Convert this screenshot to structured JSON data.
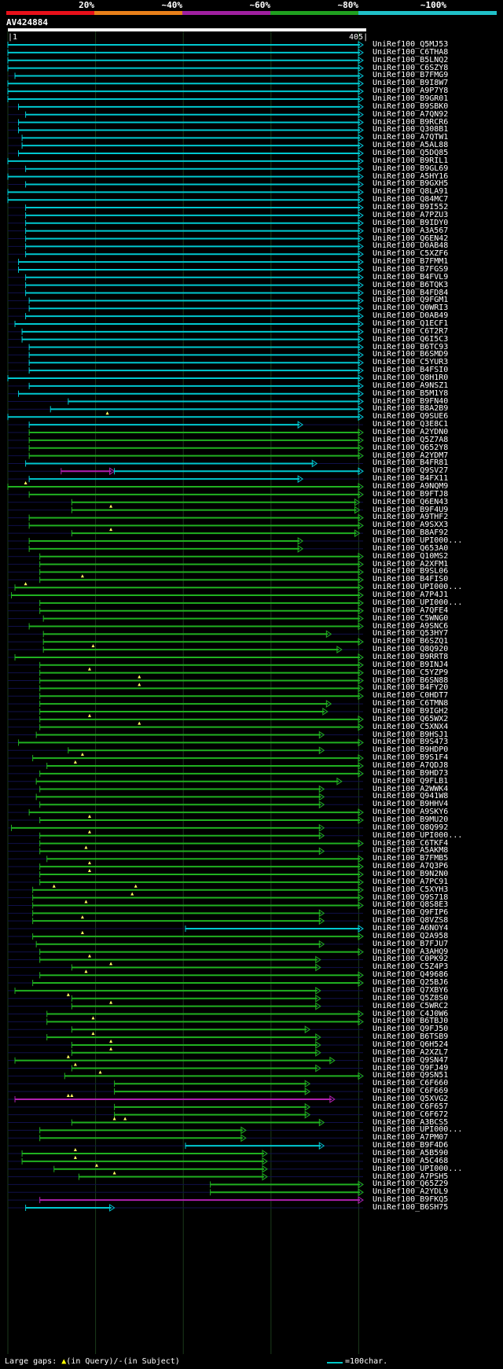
{
  "legend": {
    "labels": [
      "20%",
      "~40%",
      "~60%",
      "~80%",
      "~100%"
    ],
    "colors": [
      "#e8101a",
      "#e8801a",
      "#a020a0",
      "#20a020",
      "#20c0c8"
    ]
  },
  "query": {
    "name": "AV424884",
    "start": "1",
    "end": "405"
  },
  "hits": [
    {
      "name": "UniRef100_Q5MJ53",
      "s": 0.0,
      "e": 1.0,
      "c": "cyan"
    },
    {
      "name": "UniRef100_C6THA8",
      "s": 0.0,
      "e": 1.0,
      "c": "cyan"
    },
    {
      "name": "UniRef100_B5LNQ2",
      "s": 0.0,
      "e": 1.0,
      "c": "cyan"
    },
    {
      "name": "UniRef100_C6SZY8",
      "s": 0.0,
      "e": 1.0,
      "c": "cyan"
    },
    {
      "name": "UniRef100_B7FMG9",
      "s": 0.02,
      "e": 1.0,
      "c": "cyan"
    },
    {
      "name": "UniRef100_B9I8W7",
      "s": 0.0,
      "e": 1.0,
      "c": "cyan"
    },
    {
      "name": "UniRef100_A9P7Y8",
      "s": 0.0,
      "e": 1.0,
      "c": "cyan"
    },
    {
      "name": "UniRef100_B9GR01",
      "s": 0.0,
      "e": 1.0,
      "c": "cyan"
    },
    {
      "name": "UniRef100_B9SBK0",
      "s": 0.03,
      "e": 1.0,
      "c": "cyan"
    },
    {
      "name": "UniRef100_A7QN92",
      "s": 0.05,
      "e": 1.0,
      "c": "cyan"
    },
    {
      "name": "UniRef100_B9RCR6",
      "s": 0.03,
      "e": 1.0,
      "c": "cyan"
    },
    {
      "name": "UniRef100_Q308B1",
      "s": 0.03,
      "e": 1.0,
      "c": "cyan"
    },
    {
      "name": "UniRef100_A7QTW1",
      "s": 0.04,
      "e": 1.0,
      "c": "cyan"
    },
    {
      "name": "UniRef100_A5AL88",
      "s": 0.04,
      "e": 1.0,
      "c": "cyan"
    },
    {
      "name": "UniRef100_Q5DQ85",
      "s": 0.03,
      "e": 1.0,
      "c": "cyan"
    },
    {
      "name": "UniRef100_B9RIL1",
      "s": 0.0,
      "e": 1.0,
      "c": "cyan"
    },
    {
      "name": "UniRef100_B9GL69",
      "s": 0.05,
      "e": 1.0,
      "c": "cyan"
    },
    {
      "name": "UniRef100_A5HY16",
      "s": 0.0,
      "e": 1.0,
      "c": "cyan"
    },
    {
      "name": "UniRef100_B9GXH5",
      "s": 0.05,
      "e": 1.0,
      "c": "cyan"
    },
    {
      "name": "UniRef100_Q8LA91",
      "s": 0.0,
      "e": 1.0,
      "c": "cyan"
    },
    {
      "name": "UniRef100_Q84MC7",
      "s": 0.0,
      "e": 1.0,
      "c": "cyan"
    },
    {
      "name": "UniRef100_B9I552",
      "s": 0.05,
      "e": 1.0,
      "c": "cyan"
    },
    {
      "name": "UniRef100_A7PZU3",
      "s": 0.05,
      "e": 1.0,
      "c": "cyan"
    },
    {
      "name": "UniRef100_B9IDY0",
      "s": 0.05,
      "e": 1.0,
      "c": "cyan"
    },
    {
      "name": "UniRef100_A3A567",
      "s": 0.05,
      "e": 1.0,
      "c": "cyan"
    },
    {
      "name": "UniRef100_Q6EN42",
      "s": 0.05,
      "e": 1.0,
      "c": "cyan"
    },
    {
      "name": "UniRef100_D0AB48",
      "s": 0.05,
      "e": 1.0,
      "c": "cyan"
    },
    {
      "name": "UniRef100_C5XZF6",
      "s": 0.05,
      "e": 1.0,
      "c": "cyan"
    },
    {
      "name": "UniRef100_B7FMM1",
      "s": 0.03,
      "e": 1.0,
      "c": "cyan"
    },
    {
      "name": "UniRef100_B7FGS9",
      "s": 0.03,
      "e": 1.0,
      "c": "cyan"
    },
    {
      "name": "UniRef100_B4FVL9",
      "s": 0.05,
      "e": 1.0,
      "c": "cyan"
    },
    {
      "name": "UniRef100_B6TQK3",
      "s": 0.05,
      "e": 1.0,
      "c": "cyan"
    },
    {
      "name": "UniRef100_B4FD84",
      "s": 0.05,
      "e": 1.0,
      "c": "cyan"
    },
    {
      "name": "UniRef100_Q9FGM1",
      "s": 0.06,
      "e": 1.0,
      "c": "cyan"
    },
    {
      "name": "UniRef100_Q0WRI3",
      "s": 0.06,
      "e": 1.0,
      "c": "cyan"
    },
    {
      "name": "UniRef100_D0AB49",
      "s": 0.05,
      "e": 1.0,
      "c": "cyan"
    },
    {
      "name": "UniRef100_Q1ECF1",
      "s": 0.02,
      "e": 1.0,
      "c": "cyan"
    },
    {
      "name": "UniRef100_C6T2R7",
      "s": 0.04,
      "e": 1.0,
      "c": "cyan"
    },
    {
      "name": "UniRef100_Q6I5C3",
      "s": 0.04,
      "e": 1.0,
      "c": "cyan"
    },
    {
      "name": "UniRef100_B6TC93",
      "s": 0.06,
      "e": 1.0,
      "c": "cyan"
    },
    {
      "name": "UniRef100_B6SMD9",
      "s": 0.06,
      "e": 1.0,
      "c": "cyan"
    },
    {
      "name": "UniRef100_C5YUR3",
      "s": 0.06,
      "e": 1.0,
      "c": "cyan"
    },
    {
      "name": "UniRef100_B4FSI0",
      "s": 0.06,
      "e": 1.0,
      "c": "cyan"
    },
    {
      "name": "UniRef100_Q8H1R0",
      "s": 0.0,
      "e": 1.0,
      "c": "cyan"
    },
    {
      "name": "UniRef100_A9NSZ1",
      "s": 0.06,
      "e": 1.0,
      "c": "cyan"
    },
    {
      "name": "UniRef100_B5M1Y8",
      "s": 0.03,
      "e": 1.0,
      "c": "cyan"
    },
    {
      "name": "UniRef100_B9FN40",
      "s": 0.17,
      "e": 1.0,
      "c": "cyan"
    },
    {
      "name": "UniRef100_B8A2B9",
      "s": 0.12,
      "e": 1.0,
      "c": "cyan"
    },
    {
      "name": "UniRef100_Q9SUE6",
      "s": 0.0,
      "e": 1.0,
      "c": "cyan",
      "tri": [
        0.28
      ]
    },
    {
      "name": "UniRef100_Q3E8C1",
      "s": 0.06,
      "e": 0.83,
      "c": "cyan"
    },
    {
      "name": "UniRef100_A2YDN0",
      "s": 0.06,
      "e": 1.0,
      "c": "green"
    },
    {
      "name": "UniRef100_Q5Z7A8",
      "s": 0.06,
      "e": 1.0,
      "c": "green"
    },
    {
      "name": "UniRef100_Q652Y8",
      "s": 0.06,
      "e": 1.0,
      "c": "green"
    },
    {
      "name": "UniRef100_A2YDM7",
      "s": 0.06,
      "e": 1.0,
      "c": "green"
    },
    {
      "name": "UniRef100_B4FR81",
      "s": 0.05,
      "e": 0.87,
      "c": "cyan"
    },
    {
      "name": "UniRef100_Q9SV27",
      "s": 0.15,
      "e": 0.3,
      "c": "magenta",
      "s2": 0.3,
      "e2": 1.0,
      "c2": "cyan"
    },
    {
      "name": "UniRef100_B4FX11",
      "s": 0.06,
      "e": 0.83,
      "c": "cyan"
    },
    {
      "name": "UniRef100_A9NQM9",
      "s": 0.0,
      "e": 1.0,
      "c": "green",
      "tri": [
        0.05
      ]
    },
    {
      "name": "UniRef100_B9FTJ8",
      "s": 0.06,
      "e": 1.0,
      "c": "green"
    },
    {
      "name": "UniRef100_Q6EN43",
      "s": 0.18,
      "e": 0.99,
      "c": "green"
    },
    {
      "name": "UniRef100_B9F4U9",
      "s": 0.18,
      "e": 0.99,
      "c": "green",
      "tri": [
        0.29
      ]
    },
    {
      "name": "UniRef100_A9THF2",
      "s": 0.06,
      "e": 1.0,
      "c": "green"
    },
    {
      "name": "UniRef100_A9SXX3",
      "s": 0.06,
      "e": 1.0,
      "c": "green"
    },
    {
      "name": "UniRef100_B8AF92",
      "s": 0.18,
      "e": 0.99,
      "c": "green",
      "tri": [
        0.29
      ]
    },
    {
      "name": "UniRef100_UPI000...",
      "s": 0.06,
      "e": 0.83,
      "c": "green"
    },
    {
      "name": "UniRef100_Q653A0",
      "s": 0.06,
      "e": 0.83,
      "c": "green"
    },
    {
      "name": "UniRef100_Q10MS2",
      "s": 0.09,
      "e": 1.0,
      "c": "green"
    },
    {
      "name": "UniRef100_A2XFM1",
      "s": 0.09,
      "e": 1.0,
      "c": "green"
    },
    {
      "name": "UniRef100_B9SL06",
      "s": 0.09,
      "e": 1.0,
      "c": "green"
    },
    {
      "name": "UniRef100_B4FIS0",
      "s": 0.09,
      "e": 1.0,
      "c": "green",
      "tri": [
        0.21
      ]
    },
    {
      "name": "UniRef100_UPI000...",
      "s": 0.02,
      "e": 1.0,
      "c": "green",
      "tri": [
        0.05
      ]
    },
    {
      "name": "UniRef100_A7P4J1",
      "s": 0.01,
      "e": 1.0,
      "c": "green"
    },
    {
      "name": "UniRef100_UPI000...",
      "s": 0.09,
      "e": 1.0,
      "c": "green"
    },
    {
      "name": "UniRef100_A7QFE4",
      "s": 0.09,
      "e": 1.0,
      "c": "green"
    },
    {
      "name": "UniRef100_C5WNG0",
      "s": 0.1,
      "e": 1.0,
      "c": "green"
    },
    {
      "name": "UniRef100_A9SNC6",
      "s": 0.06,
      "e": 1.0,
      "c": "green"
    },
    {
      "name": "UniRef100_Q53HY7",
      "s": 0.1,
      "e": 0.91,
      "c": "green"
    },
    {
      "name": "UniRef100_B6SZQ1",
      "s": 0.1,
      "e": 1.0,
      "c": "green"
    },
    {
      "name": "UniRef100_Q8Q920",
      "s": 0.1,
      "e": 0.94,
      "c": "green",
      "tri": [
        0.24
      ]
    },
    {
      "name": "UniRef100_B9RRT8",
      "s": 0.02,
      "e": 1.0,
      "c": "green"
    },
    {
      "name": "UniRef100_B9INJ4",
      "s": 0.09,
      "e": 1.0,
      "c": "green"
    },
    {
      "name": "UniRef100_C5YZP9",
      "s": 0.09,
      "e": 1.0,
      "c": "green",
      "tri": [
        0.23
      ]
    },
    {
      "name": "UniRef100_B6SN88",
      "s": 0.09,
      "e": 1.0,
      "c": "green",
      "tri": [
        0.37
      ]
    },
    {
      "name": "UniRef100_B4FY20",
      "s": 0.09,
      "e": 1.0,
      "c": "green",
      "tri": [
        0.37
      ]
    },
    {
      "name": "UniRef100_C0HDT7",
      "s": 0.09,
      "e": 1.0,
      "c": "green"
    },
    {
      "name": "UniRef100_C6TMN8",
      "s": 0.09,
      "e": 0.91,
      "c": "green"
    },
    {
      "name": "UniRef100_B9IGH2",
      "s": 0.09,
      "e": 0.9,
      "c": "green"
    },
    {
      "name": "UniRef100_Q65WX2",
      "s": 0.09,
      "e": 1.0,
      "c": "green",
      "tri": [
        0.23
      ]
    },
    {
      "name": "UniRef100_C5XNX4",
      "s": 0.09,
      "e": 1.0,
      "c": "green",
      "tri": [
        0.37
      ]
    },
    {
      "name": "UniRef100_B9HSJ1",
      "s": 0.08,
      "e": 0.89,
      "c": "green"
    },
    {
      "name": "UniRef100_B9S473",
      "s": 0.03,
      "e": 1.0,
      "c": "green"
    },
    {
      "name": "UniRef100_B9HDP0",
      "s": 0.17,
      "e": 0.89,
      "c": "green"
    },
    {
      "name": "UniRef100_B9S1F4",
      "s": 0.07,
      "e": 1.0,
      "c": "green",
      "tri": [
        0.21
      ]
    },
    {
      "name": "UniRef100_A7QDJ8",
      "s": 0.11,
      "e": 1.0,
      "c": "green",
      "tri": [
        0.19
      ]
    },
    {
      "name": "UniRef100_B9HD73",
      "s": 0.09,
      "e": 1.0,
      "c": "green"
    },
    {
      "name": "UniRef100_Q9FLB1",
      "s": 0.08,
      "e": 0.94,
      "c": "green"
    },
    {
      "name": "UniRef100_A2WWK4",
      "s": 0.09,
      "e": 0.89,
      "c": "green"
    },
    {
      "name": "UniRef100_Q941W8",
      "s": 0.08,
      "e": 0.89,
      "c": "green"
    },
    {
      "name": "UniRef100_B9HHV4",
      "s": 0.09,
      "e": 0.89,
      "c": "green"
    },
    {
      "name": "UniRef100_A9SKY6",
      "s": 0.06,
      "e": 1.0,
      "c": "green"
    },
    {
      "name": "UniRef100_B9MU20",
      "s": 0.09,
      "e": 1.0,
      "c": "green",
      "tri": [
        0.23
      ]
    },
    {
      "name": "UniRef100_Q8Q992",
      "s": 0.01,
      "e": 0.89,
      "c": "green"
    },
    {
      "name": "UniRef100_UPI000...",
      "s": 0.09,
      "e": 0.89,
      "c": "green",
      "tri": [
        0.23
      ]
    },
    {
      "name": "UniRef100_C6TKF4",
      "s": 0.09,
      "e": 1.0,
      "c": "green"
    },
    {
      "name": "UniRef100_A5AKM8",
      "s": 0.09,
      "e": 0.89,
      "c": "green",
      "tri": [
        0.22
      ]
    },
    {
      "name": "UniRef100_B7FMB5",
      "s": 0.11,
      "e": 1.0,
      "c": "green"
    },
    {
      "name": "UniRef100_A7Q3P6",
      "s": 0.09,
      "e": 1.0,
      "c": "green",
      "tri": [
        0.23
      ]
    },
    {
      "name": "UniRef100_B9N2N0",
      "s": 0.09,
      "e": 1.0,
      "c": "green",
      "tri": [
        0.23
      ]
    },
    {
      "name": "UniRef100_A7PC91",
      "s": 0.09,
      "e": 1.0,
      "c": "green"
    },
    {
      "name": "UniRef100_C5XYH3",
      "s": 0.07,
      "e": 1.0,
      "c": "green",
      "tri": [
        0.13,
        0.36
      ]
    },
    {
      "name": "UniRef100_Q9S718",
      "s": 0.07,
      "e": 1.0,
      "c": "green",
      "tri": [
        0.35
      ]
    },
    {
      "name": "UniRef100_Q8S8E3",
      "s": 0.07,
      "e": 1.0,
      "c": "green",
      "tri": [
        0.22
      ]
    },
    {
      "name": "UniRef100_Q9FIP6",
      "s": 0.07,
      "e": 0.89,
      "c": "green"
    },
    {
      "name": "UniRef100_Q8VZS8",
      "s": 0.07,
      "e": 0.89,
      "c": "green",
      "tri": [
        0.21
      ]
    },
    {
      "name": "UniRef100_A6NOY4",
      "s": 0.5,
      "e": 1.0,
      "c": "cyan"
    },
    {
      "name": "UniRef100_Q2A958",
      "s": 0.07,
      "e": 1.0,
      "c": "green",
      "tri": [
        0.21
      ]
    },
    {
      "name": "UniRef100_B7FJU7",
      "s": 0.08,
      "e": 0.89,
      "c": "green"
    },
    {
      "name": "UniRef100_A3AHQ9",
      "s": 0.09,
      "e": 1.0,
      "c": "green"
    },
    {
      "name": "UniRef100_C0PK92",
      "s": 0.09,
      "e": 0.88,
      "c": "green",
      "tri": [
        0.23
      ]
    },
    {
      "name": "UniRef100_C5Z4P3",
      "s": 0.18,
      "e": 0.88,
      "c": "green",
      "tri": [
        0.29
      ]
    },
    {
      "name": "UniRef100_Q49686",
      "s": 0.09,
      "e": 1.0,
      "c": "green",
      "tri": [
        0.22
      ]
    },
    {
      "name": "UniRef100_Q25BJ6",
      "s": 0.07,
      "e": 1.0,
      "c": "green"
    },
    {
      "name": "UniRef100_Q7XBY6",
      "s": 0.02,
      "e": 0.88,
      "c": "green"
    },
    {
      "name": "UniRef100_Q5Z8S0",
      "s": 0.18,
      "e": 0.88,
      "c": "green",
      "tri": [
        0.17
      ]
    },
    {
      "name": "UniRef100_C5WRC2",
      "s": 0.18,
      "e": 0.88,
      "c": "green",
      "tri": [
        0.29
      ]
    },
    {
      "name": "UniRef100_C4J0W6",
      "s": 0.11,
      "e": 1.0,
      "c": "green"
    },
    {
      "name": "UniRef100_B6TBJ0",
      "s": 0.11,
      "e": 1.0,
      "c": "green",
      "tri": [
        0.24
      ]
    },
    {
      "name": "UniRef100_Q9FJ50",
      "s": 0.18,
      "e": 0.85,
      "c": "green"
    },
    {
      "name": "UniRef100_B6TSB9",
      "s": 0.11,
      "e": 0.88,
      "c": "green",
      "tri": [
        0.24
      ]
    },
    {
      "name": "UniRef100_Q6H524",
      "s": 0.18,
      "e": 0.88,
      "c": "green",
      "tri": [
        0.29
      ]
    },
    {
      "name": "UniRef100_A2XZL7",
      "s": 0.18,
      "e": 0.88,
      "c": "green",
      "tri": [
        0.29
      ]
    },
    {
      "name": "UniRef100_Q9SN47",
      "s": 0.02,
      "e": 0.92,
      "c": "green",
      "tri": [
        0.17
      ]
    },
    {
      "name": "UniRef100_Q9FJ49",
      "s": 0.18,
      "e": 0.88,
      "c": "green",
      "tri": [
        0.19
      ]
    },
    {
      "name": "UniRef100_Q9SN51",
      "s": 0.16,
      "e": 1.0,
      "c": "green",
      "tri": [
        0.26
      ]
    },
    {
      "name": "UniRef100_C6F660",
      "s": 0.3,
      "e": 0.85,
      "c": "green"
    },
    {
      "name": "UniRef100_C6F669",
      "s": 0.3,
      "e": 0.85,
      "c": "green"
    },
    {
      "name": "UniRef100_Q5XVG2",
      "s": 0.02,
      "e": 0.92,
      "c": "magenta",
      "tri": [
        0.17,
        0.18
      ]
    },
    {
      "name": "UniRef100_C6F657",
      "s": 0.3,
      "e": 0.85,
      "c": "green"
    },
    {
      "name": "UniRef100_C6F672",
      "s": 0.3,
      "e": 0.85,
      "c": "green"
    },
    {
      "name": "UniRef100_A3BCS5",
      "s": 0.18,
      "e": 0.89,
      "c": "green",
      "tri": [
        0.3,
        0.33
      ]
    },
    {
      "name": "UniRef100_UPI000...",
      "s": 0.09,
      "e": 0.67,
      "c": "green"
    },
    {
      "name": "UniRef100_A7PM07",
      "s": 0.09,
      "e": 0.67,
      "c": "green"
    },
    {
      "name": "UniRef100_B9F4D6",
      "s": 0.5,
      "e": 0.89,
      "c": "cyan"
    },
    {
      "name": "UniRef100_A5B590",
      "s": 0.04,
      "e": 0.73,
      "c": "green",
      "tri": [
        0.19
      ]
    },
    {
      "name": "UniRef100_A5C468",
      "s": 0.04,
      "e": 0.73,
      "c": "green",
      "tri": [
        0.19
      ]
    },
    {
      "name": "UniRef100_UPI000...",
      "s": 0.13,
      "e": 0.73,
      "c": "green",
      "tri": [
        0.25
      ]
    },
    {
      "name": "UniRef100_A7PSH5",
      "s": 0.2,
      "e": 0.73,
      "c": "green",
      "tri": [
        0.3
      ]
    },
    {
      "name": "UniRef100_Q65Z29",
      "s": 0.57,
      "e": 1.0,
      "c": "green"
    },
    {
      "name": "UniRef100_A2YDL9",
      "s": 0.57,
      "e": 1.0,
      "c": "green"
    },
    {
      "name": "UniRef100_B9FKQ5",
      "s": 0.09,
      "e": 1.0,
      "c": "magenta"
    },
    {
      "name": "UniRef100_B6SH75",
      "s": 0.05,
      "e": 0.3,
      "c": "cyan"
    }
  ],
  "footer": {
    "gaps_label": "Large gaps:",
    "query_gap": "(in Query)/",
    "subject_gap": "(in Subject)",
    "scale_label": "=100char."
  }
}
